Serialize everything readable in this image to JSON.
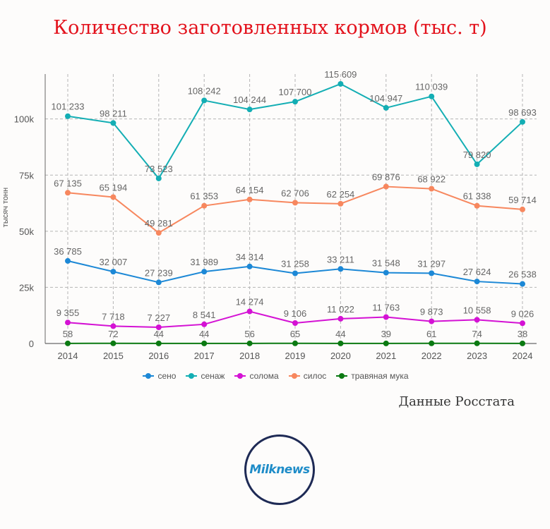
{
  "title": "Количество заготовленных кормов (тыс. т)",
  "source": "Данные Росстата",
  "logo": "Milknews",
  "chart_data": {
    "type": "line",
    "ylabel": "тысяч тонн",
    "xlabel": "",
    "ylim": [
      0,
      120000
    ],
    "y_ticks": [
      0,
      25000,
      50000,
      75000,
      100000
    ],
    "y_tick_labels": [
      "0",
      "25k",
      "50k",
      "75k",
      "100k"
    ],
    "grid": true,
    "legend_position": "bottom",
    "categories": [
      "2014",
      "2015",
      "2016",
      "2017",
      "2018",
      "2019",
      "2020",
      "2021",
      "2022",
      "2023",
      "2024"
    ],
    "series": [
      {
        "name": "сено",
        "color": "#1c88d6",
        "values": [
          36785,
          32007,
          27239,
          31989,
          34314,
          31258,
          33211,
          31548,
          31297,
          27624,
          26538
        ],
        "labels": [
          "36 785",
          "32 007",
          "27 239",
          "31 989",
          "34 314",
          "31 258",
          "33 211",
          "31 548",
          "31 297",
          "27 624",
          "26 538"
        ]
      },
      {
        "name": "сенаж",
        "color": "#13aeb4",
        "values": [
          101233,
          98211,
          73523,
          108242,
          104244,
          107700,
          115609,
          104947,
          110039,
          79820,
          98693
        ],
        "labels": [
          "101 233",
          "98 211",
          "73 523",
          "108 242",
          "104 244",
          "107 700",
          "115 609",
          "104 947",
          "110 039",
          "79 820",
          "98 693"
        ]
      },
      {
        "name": "солома",
        "color": "#d412d4",
        "values": [
          9355,
          7718,
          7227,
          8541,
          14274,
          9106,
          11022,
          11763,
          9873,
          10558,
          9026
        ],
        "labels": [
          "9 355",
          "7 718",
          "7 227",
          "8 541",
          "14 274",
          "9 106",
          "11 022",
          "11 763",
          "9 873",
          "10 558",
          "9 026"
        ]
      },
      {
        "name": "силос",
        "color": "#f7875e",
        "values": [
          67135,
          65194,
          49281,
          61353,
          64154,
          62706,
          62254,
          69876,
          68922,
          61338,
          59714
        ],
        "labels": [
          "67 135",
          "65 194",
          "49 281",
          "61 353",
          "64 154",
          "62 706",
          "62 254",
          "69 876",
          "68 922",
          "61 338",
          "59 714"
        ]
      },
      {
        "name": "травяная мука",
        "color": "#0b7a12",
        "values": [
          58,
          72,
          44,
          44,
          56,
          65,
          44,
          39,
          61,
          74,
          38
        ],
        "labels": [
          "58",
          "72",
          "44",
          "44",
          "56",
          "65",
          "44",
          "39",
          "61",
          "74",
          "38"
        ]
      }
    ]
  }
}
